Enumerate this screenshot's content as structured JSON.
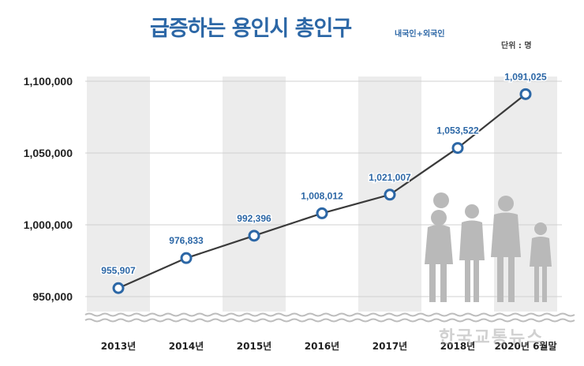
{
  "header": {
    "title": "급증하는 용인시 총인구",
    "subtitle": "내국인+외국인",
    "unit": "단위 : 명"
  },
  "watermark": "한국교통뉴스",
  "colors": {
    "line": "#3a3a3a",
    "marker_stroke": "#2c67a6",
    "band": "#ececec",
    "label": "#2c67a6"
  },
  "chart_data": {
    "type": "line",
    "title": "급증하는 용인시 총인구",
    "subtitle": "내국인+외국인",
    "unit": "단위 : 명",
    "categories": [
      "2013년",
      "2014년",
      "2015년",
      "2016년",
      "2017년",
      "2018년",
      "2020년 6월말"
    ],
    "values": [
      955907,
      976833,
      992396,
      1008012,
      1021007,
      1053522,
      1091025
    ],
    "value_labels": [
      "955,907",
      "976,833",
      "992,396",
      "1,008,012",
      "1,021,007",
      "1,053,522",
      "1,091,025"
    ],
    "yticks": [
      950000,
      1000000,
      1050000,
      1100000
    ],
    "ytick_labels": [
      "950,000",
      "1,000,000",
      "1,050,000",
      "1,100,000"
    ],
    "ylim": [
      940000,
      1105000
    ],
    "xlabel": "",
    "ylabel": "",
    "grid": true,
    "alternating_bands": true,
    "axis_break": true,
    "legend": "none"
  }
}
